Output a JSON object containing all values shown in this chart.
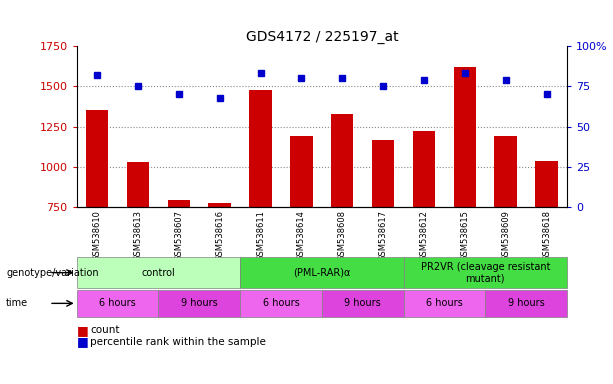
{
  "title": "GDS4172 / 225197_at",
  "samples": [
    "GSM538610",
    "GSM538613",
    "GSM538607",
    "GSM538616",
    "GSM538611",
    "GSM538614",
    "GSM538608",
    "GSM538617",
    "GSM538612",
    "GSM538615",
    "GSM538609",
    "GSM538618"
  ],
  "counts": [
    1355,
    1030,
    795,
    775,
    1480,
    1195,
    1330,
    1165,
    1225,
    1620,
    1195,
    1040
  ],
  "percentile_ranks": [
    82,
    75,
    70,
    68,
    83,
    80,
    80,
    75,
    79,
    83,
    79,
    70
  ],
  "ylim_left": [
    750,
    1750
  ],
  "ylim_right": [
    0,
    100
  ],
  "yticks_left": [
    750,
    1000,
    1250,
    1500,
    1750
  ],
  "yticks_right": [
    0,
    25,
    50,
    75,
    100
  ],
  "ytick_labels_right": [
    "0",
    "25",
    "50",
    "75",
    "100%"
  ],
  "bar_color": "#cc0000",
  "dot_color": "#0000cc",
  "bar_bottom": 750,
  "genotype_groups": [
    {
      "label": "control",
      "start": 0,
      "end": 4,
      "color": "#bbffbb"
    },
    {
      "label": "(PML-RAR)α",
      "start": 4,
      "end": 8,
      "color": "#44dd44"
    },
    {
      "label": "PR2VR (cleavage resistant\nmutant)",
      "start": 8,
      "end": 12,
      "color": "#44dd44"
    }
  ],
  "time_groups": [
    {
      "label": "6 hours",
      "start": 0,
      "end": 2,
      "color": "#ee66ee"
    },
    {
      "label": "9 hours",
      "start": 2,
      "end": 4,
      "color": "#dd44dd"
    },
    {
      "label": "6 hours",
      "start": 4,
      "end": 6,
      "color": "#ee66ee"
    },
    {
      "label": "9 hours",
      "start": 6,
      "end": 8,
      "color": "#dd44dd"
    },
    {
      "label": "6 hours",
      "start": 8,
      "end": 10,
      "color": "#ee66ee"
    },
    {
      "label": "9 hours",
      "start": 10,
      "end": 12,
      "color": "#dd44dd"
    }
  ],
  "legend_count_color": "#cc0000",
  "legend_dot_color": "#0000cc",
  "genotype_label": "genotype/variation",
  "time_label": "time",
  "legend_count_label": "count",
  "legend_percentile_label": "percentile rank within the sample",
  "left_tick_color": "#cc0000",
  "right_tick_color": "#0000cc",
  "dotted_line_color": "#888888"
}
